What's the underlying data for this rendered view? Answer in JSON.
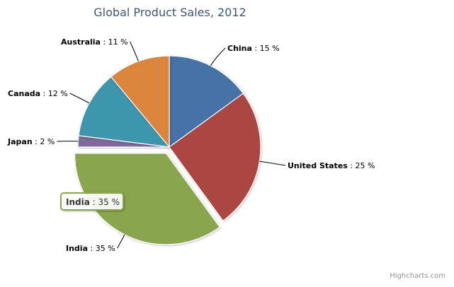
{
  "chart_data": {
    "type": "pie",
    "title": "Global Product Sales, 2012",
    "unit": "%",
    "slices": [
      {
        "name": "China",
        "value": 15,
        "color": "#4572A7",
        "label_side": "right"
      },
      {
        "name": "United States",
        "value": 25,
        "color": "#AA4643",
        "label_side": "right"
      },
      {
        "name": "India",
        "value": 35,
        "color": "#89A54E",
        "label_side": "left",
        "selected": true
      },
      {
        "name": "Japan",
        "value": 2,
        "color": "#80699B",
        "label_side": "left"
      },
      {
        "name": "Canada",
        "value": 12,
        "color": "#3D96AE",
        "label_side": "left"
      },
      {
        "name": "Australia",
        "value": 11,
        "color": "#DB843D",
        "label_side": "left"
      }
    ],
    "tooltip": {
      "name": "India",
      "value": 35,
      "border_color": "#89A54E"
    },
    "credits": "Highcharts.com"
  }
}
